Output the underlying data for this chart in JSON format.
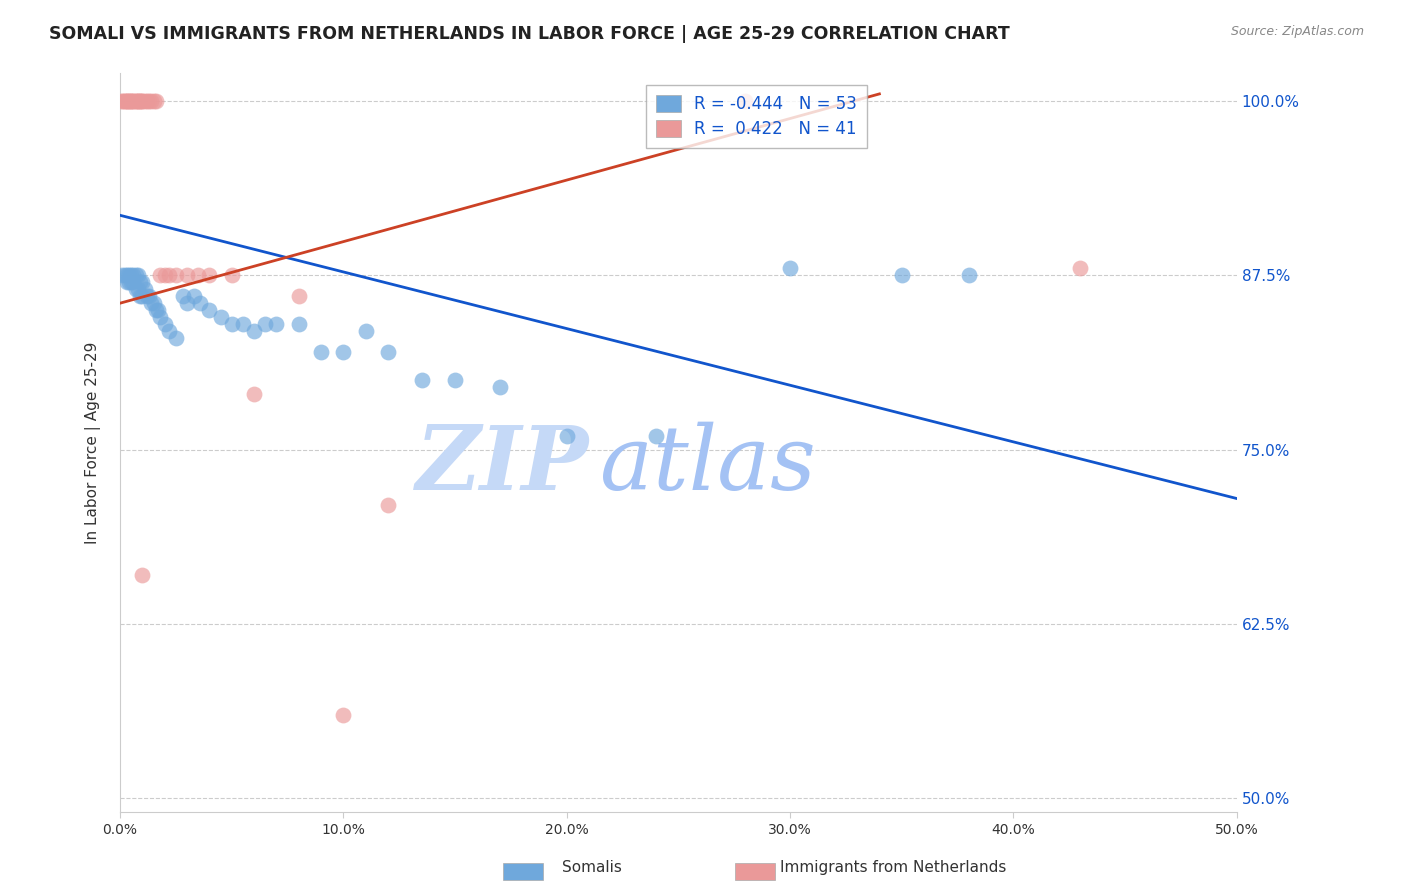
{
  "title": "SOMALI VS IMMIGRANTS FROM NETHERLANDS IN LABOR FORCE | AGE 25-29 CORRELATION CHART",
  "source": "Source: ZipAtlas.com",
  "ylabel": "In Labor Force | Age 25-29",
  "ylabel_ticks": [
    "100.0%",
    "87.5%",
    "75.0%",
    "62.5%",
    "50.0%"
  ],
  "ytick_values": [
    1.0,
    0.875,
    0.75,
    0.625,
    0.5
  ],
  "xtick_labels": [
    "0.0%",
    "10.0%",
    "20.0%",
    "30.0%",
    "40.0%",
    "50.0%"
  ],
  "xtick_values": [
    0.0,
    0.1,
    0.2,
    0.3,
    0.4,
    0.5
  ],
  "xlim": [
    0.0,
    0.5
  ],
  "ylim": [
    0.49,
    1.02
  ],
  "legend_blue_R": "-0.444",
  "legend_blue_N": "53",
  "legend_pink_R": "0.422",
  "legend_pink_N": "41",
  "blue_color": "#6fa8dc",
  "pink_color": "#ea9999",
  "blue_line_color": "#1155cc",
  "pink_line_color": "#cc4125",
  "watermark_zip": "ZIP",
  "watermark_atlas": "atlas",
  "watermark_color_zip": "#c5d9f7",
  "watermark_color_atlas": "#a4c2f4",
  "somali_x": [
    0.001,
    0.002,
    0.003,
    0.003,
    0.004,
    0.004,
    0.005,
    0.005,
    0.006,
    0.006,
    0.007,
    0.007,
    0.008,
    0.008,
    0.009,
    0.009,
    0.01,
    0.01,
    0.011,
    0.012,
    0.013,
    0.014,
    0.015,
    0.016,
    0.017,
    0.018,
    0.02,
    0.022,
    0.025,
    0.028,
    0.03,
    0.033,
    0.036,
    0.04,
    0.045,
    0.05,
    0.055,
    0.06,
    0.065,
    0.07,
    0.08,
    0.09,
    0.1,
    0.11,
    0.12,
    0.135,
    0.15,
    0.17,
    0.2,
    0.24,
    0.3,
    0.35,
    0.38
  ],
  "somali_y": [
    0.875,
    0.875,
    0.875,
    0.87,
    0.875,
    0.87,
    0.875,
    0.87,
    0.875,
    0.87,
    0.875,
    0.865,
    0.875,
    0.865,
    0.87,
    0.86,
    0.87,
    0.86,
    0.865,
    0.86,
    0.86,
    0.855,
    0.855,
    0.85,
    0.85,
    0.845,
    0.84,
    0.835,
    0.83,
    0.86,
    0.855,
    0.86,
    0.855,
    0.85,
    0.845,
    0.84,
    0.84,
    0.835,
    0.84,
    0.84,
    0.84,
    0.82,
    0.82,
    0.835,
    0.82,
    0.8,
    0.8,
    0.795,
    0.76,
    0.76,
    0.88,
    0.875,
    0.875
  ],
  "netherlands_x": [
    0.001,
    0.001,
    0.002,
    0.002,
    0.003,
    0.003,
    0.004,
    0.004,
    0.005,
    0.005,
    0.006,
    0.006,
    0.007,
    0.007,
    0.008,
    0.008,
    0.009,
    0.009,
    0.01,
    0.01,
    0.011,
    0.012,
    0.013,
    0.014,
    0.015,
    0.016,
    0.018,
    0.02,
    0.022,
    0.025,
    0.03,
    0.035,
    0.04,
    0.05,
    0.06,
    0.08,
    0.1,
    0.12,
    0.28,
    0.43,
    0.01
  ],
  "netherlands_y": [
    1.0,
    1.0,
    1.0,
    1.0,
    1.0,
    1.0,
    1.0,
    1.0,
    1.0,
    1.0,
    1.0,
    1.0,
    1.0,
    1.0,
    1.0,
    1.0,
    1.0,
    1.0,
    1.0,
    1.0,
    1.0,
    1.0,
    1.0,
    1.0,
    1.0,
    1.0,
    0.875,
    0.875,
    0.875,
    0.875,
    0.875,
    0.875,
    0.875,
    0.875,
    0.79,
    0.86,
    0.56,
    0.71,
    1.0,
    0.88,
    0.66
  ],
  "blue_trend": [
    0.0,
    0.5,
    0.918,
    0.715
  ],
  "pink_trend": [
    0.0,
    0.34,
    0.855,
    1.005
  ]
}
